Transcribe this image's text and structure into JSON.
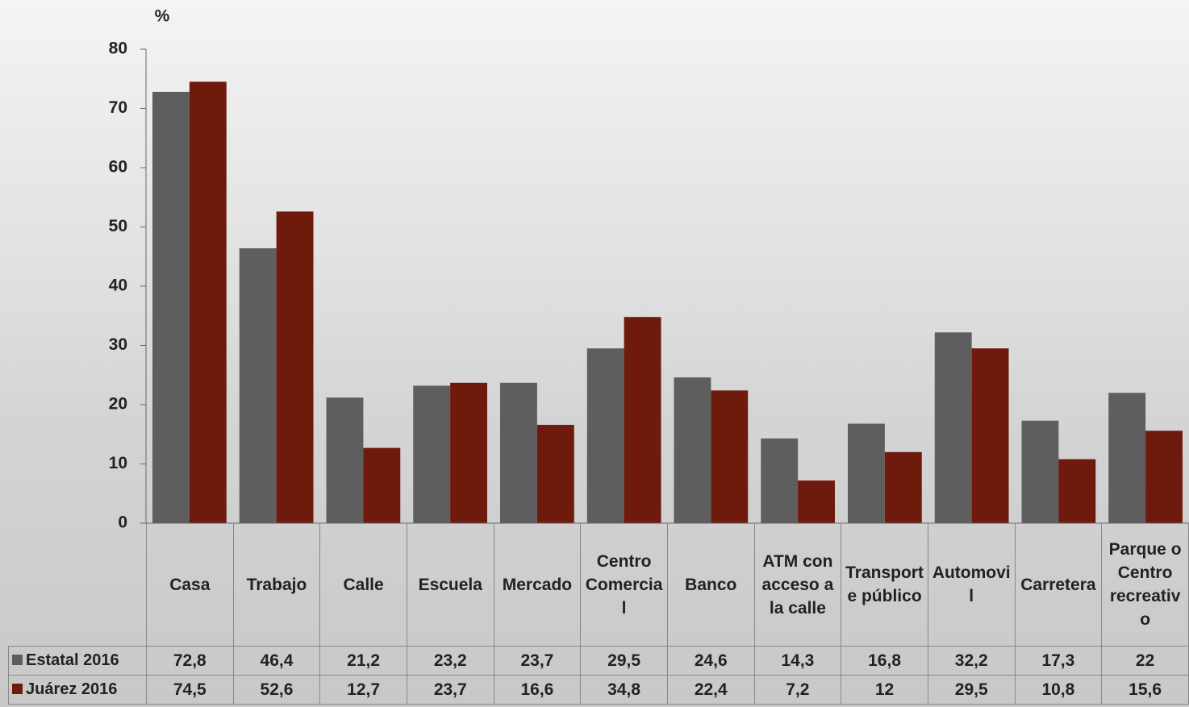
{
  "chart_data": {
    "type": "bar",
    "y_label": "%",
    "categories": [
      "Casa",
      "Trabajo",
      "Calle",
      "Escuela",
      "Mercado",
      "Centro Comercial",
      "Banco",
      "ATM con acceso a la calle",
      "Transporte público",
      "Automovil",
      "Carretera",
      "Parque o Centro recreativo"
    ],
    "series": [
      {
        "name": "Estatal 2016",
        "color": "#5e5e5e",
        "values": [
          72.8,
          46.4,
          21.2,
          23.2,
          23.7,
          29.5,
          24.6,
          14.3,
          16.8,
          32.2,
          17.3,
          22
        ],
        "value_labels": [
          "72,8",
          "46,4",
          "21,2",
          "23,2",
          "23,7",
          "29,5",
          "24,6",
          "14,3",
          "16,8",
          "32,2",
          "17,3",
          "22"
        ]
      },
      {
        "name": "Juárez 2016",
        "color": "#6e1a0c",
        "values": [
          74.5,
          52.6,
          12.7,
          23.7,
          16.6,
          34.8,
          22.4,
          7.2,
          12,
          29.5,
          10.8,
          15.6
        ],
        "value_labels": [
          "74,5",
          "52,6",
          "12,7",
          "23,7",
          "16,6",
          "34,8",
          "22,4",
          "7,2",
          "12",
          "29,5",
          "10,8",
          "15,6"
        ]
      }
    ],
    "ylim": [
      0,
      80
    ],
    "yticks": [
      0,
      10,
      20,
      30,
      40,
      50,
      60,
      70,
      80
    ]
  }
}
